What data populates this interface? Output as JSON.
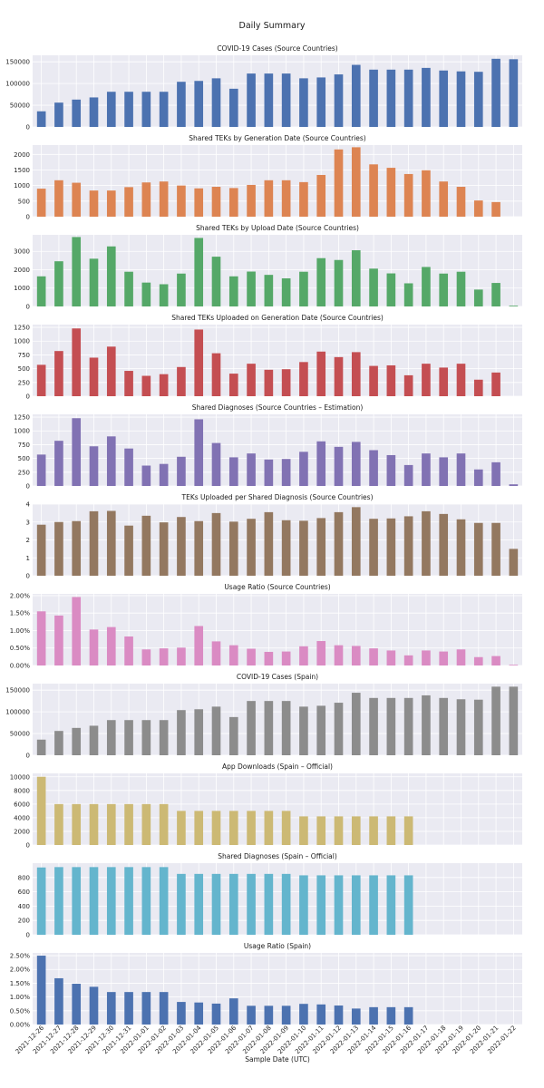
{
  "figure": {
    "title": "Daily Summary",
    "xlabel": "Sample Date (UTC)",
    "colors": {
      "background": "#eaeaf2",
      "grid": "#ffffff"
    }
  },
  "chart_data": [
    {
      "type": "bar",
      "title": "COVID-19 Cases (Source Countries)",
      "color": "#4c72b0",
      "ylim": [
        0,
        165000
      ],
      "yticks": [
        0,
        50000,
        100000,
        150000
      ],
      "ytick_labels": [
        "0",
        "50000",
        "100000",
        "150000"
      ],
      "values": [
        36000,
        56000,
        63000,
        68000,
        81000,
        81000,
        81000,
        81000,
        104000,
        106000,
        112000,
        88000,
        123000,
        123000,
        123000,
        112000,
        114000,
        121000,
        143000,
        132000,
        132000,
        132000,
        136000,
        130000,
        128000,
        127000,
        157000,
        156000
      ]
    },
    {
      "type": "bar",
      "title": "Shared TEKs by Generation Date (Source Countries)",
      "color": "#dd8452",
      "ylim": [
        0,
        2300
      ],
      "yticks": [
        0,
        500,
        1000,
        1500,
        2000
      ],
      "ytick_labels": [
        "0",
        "500",
        "1000",
        "1500",
        "2000"
      ],
      "values": [
        900,
        1170,
        1090,
        840,
        840,
        950,
        1100,
        1130,
        1000,
        910,
        960,
        920,
        1020,
        1170,
        1170,
        1110,
        1340,
        2160,
        2230,
        1680,
        1570,
        1370,
        1490,
        1130,
        960,
        520,
        470,
        0
      ]
    },
    {
      "type": "bar",
      "title": "Shared TEKs by Upload Date (Source Countries)",
      "color": "#55a868",
      "ylim": [
        0,
        3900
      ],
      "yticks": [
        0,
        1000,
        2000,
        3000
      ],
      "ytick_labels": [
        "0",
        "1000",
        "2000",
        "3000"
      ],
      "values": [
        1640,
        2460,
        3780,
        2600,
        3270,
        1890,
        1300,
        1210,
        1790,
        3730,
        2710,
        1640,
        1900,
        1720,
        1530,
        1890,
        2630,
        2530,
        3060,
        2060,
        1800,
        1260,
        2150,
        1790,
        1890,
        920,
        1280,
        40
      ]
    },
    {
      "type": "bar",
      "title": "Shared TEKs Uploaded on Generation Date (Source Countries)",
      "color": "#c44e52",
      "ylim": [
        0,
        1300
      ],
      "yticks": [
        0,
        250,
        500,
        750,
        1000,
        1250
      ],
      "ytick_labels": [
        "0",
        "250",
        "500",
        "750",
        "1000",
        "1250"
      ],
      "values": [
        570,
        820,
        1230,
        700,
        900,
        460,
        370,
        400,
        530,
        1210,
        780,
        410,
        590,
        480,
        490,
        620,
        810,
        710,
        800,
        550,
        560,
        380,
        590,
        520,
        590,
        300,
        430,
        0
      ]
    },
    {
      "type": "bar",
      "title": "Shared Diagnoses (Source Countries – Estimation)",
      "color": "#8172b3",
      "ylim": [
        0,
        1300
      ],
      "yticks": [
        0,
        250,
        500,
        750,
        1000,
        1250
      ],
      "ytick_labels": [
        "0",
        "250",
        "500",
        "750",
        "1000",
        "1250"
      ],
      "values": [
        570,
        820,
        1230,
        720,
        900,
        680,
        370,
        400,
        530,
        1210,
        780,
        520,
        590,
        480,
        490,
        620,
        810,
        710,
        800,
        650,
        560,
        380,
        590,
        520,
        590,
        300,
        430,
        30
      ]
    },
    {
      "type": "bar",
      "title": "TEKs Uploaded per Shared Diagnosis (Source Countries)",
      "color": "#937860",
      "ylim": [
        0,
        4
      ],
      "yticks": [
        0,
        1,
        2,
        3,
        4
      ],
      "ytick_labels": [
        "0",
        "1",
        "2",
        "3",
        "4"
      ],
      "values": [
        2.85,
        3.0,
        3.05,
        3.6,
        3.62,
        2.8,
        3.35,
        2.98,
        3.28,
        3.05,
        3.5,
        3.02,
        3.18,
        3.55,
        3.1,
        3.07,
        3.22,
        3.55,
        3.83,
        3.18,
        3.2,
        3.32,
        3.6,
        3.45,
        3.15,
        2.95,
        2.95,
        1.5
      ]
    },
    {
      "type": "bar",
      "title": "Usage Ratio (Source Countries)",
      "color": "#da8bc3",
      "ylim": [
        0,
        0.0205
      ],
      "yticks": [
        0,
        0.005,
        0.01,
        0.015,
        0.02
      ],
      "ytick_labels": [
        "0.00%",
        "0.50%",
        "1.00%",
        "1.50%",
        "2.00%"
      ],
      "values": [
        0.0155,
        0.0143,
        0.0196,
        0.0103,
        0.011,
        0.0083,
        0.0046,
        0.0049,
        0.0051,
        0.0113,
        0.0069,
        0.0058,
        0.0048,
        0.0039,
        0.004,
        0.0055,
        0.007,
        0.0058,
        0.0056,
        0.0049,
        0.0043,
        0.0029,
        0.0043,
        0.004,
        0.0046,
        0.0024,
        0.0027,
        0.0002
      ]
    },
    {
      "type": "bar",
      "title": "COVID-19 Cases (Spain)",
      "color": "#8c8c8c",
      "ylim": [
        0,
        165000
      ],
      "yticks": [
        0,
        50000,
        100000,
        150000
      ],
      "ytick_labels": [
        "0",
        "50000",
        "100000",
        "150000"
      ],
      "values": [
        36000,
        56000,
        63000,
        68000,
        81000,
        81000,
        81000,
        81000,
        104000,
        106000,
        112000,
        88000,
        125000,
        125000,
        125000,
        112000,
        114000,
        121000,
        144000,
        132000,
        132000,
        132000,
        138000,
        132000,
        129000,
        128000,
        158000,
        158000
      ]
    },
    {
      "type": "bar",
      "title": "App Downloads (Spain – Official)",
      "color": "#ccb974",
      "ylim": [
        0,
        10500
      ],
      "yticks": [
        0,
        2000,
        4000,
        6000,
        8000,
        10000
      ],
      "ytick_labels": [
        "0",
        "2000",
        "4000",
        "6000",
        "8000",
        "10000"
      ],
      "values": [
        10000,
        6000,
        6000,
        6000,
        6000,
        6000,
        6000,
        6000,
        5000,
        5000,
        5000,
        5000,
        5000,
        5000,
        5000,
        4200,
        4200,
        4200,
        4200,
        4200,
        4200,
        4200,
        0,
        0,
        0,
        0,
        0,
        0
      ]
    },
    {
      "type": "bar",
      "title": "Shared Diagnoses (Spain – Official)",
      "color": "#64b5cd",
      "ylim": [
        0,
        1000
      ],
      "yticks": [
        0,
        200,
        400,
        600,
        800
      ],
      "ytick_labels": [
        "0",
        "200",
        "400",
        "600",
        "800"
      ],
      "values": [
        940,
        945,
        945,
        945,
        945,
        945,
        945,
        945,
        850,
        850,
        850,
        850,
        850,
        850,
        850,
        830,
        830,
        830,
        830,
        830,
        830,
        830,
        0,
        0,
        0,
        0,
        0,
        0
      ]
    },
    {
      "type": "bar",
      "title": "Usage Ratio (Spain)",
      "color": "#4c72b0",
      "ylim": [
        0,
        0.026
      ],
      "yticks": [
        0,
        0.005,
        0.01,
        0.015,
        0.02,
        0.025
      ],
      "ytick_labels": [
        "0.00%",
        "0.50%",
        "1.00%",
        "1.50%",
        "2.00%",
        "2.50%"
      ],
      "values": [
        0.025,
        0.0168,
        0.0148,
        0.0137,
        0.0118,
        0.0118,
        0.0118,
        0.0118,
        0.0082,
        0.008,
        0.0076,
        0.0095,
        0.0068,
        0.0068,
        0.0068,
        0.0075,
        0.0073,
        0.0069,
        0.0058,
        0.0063,
        0.0063,
        0.0063,
        0,
        0,
        0,
        0,
        0,
        0
      ]
    }
  ],
  "x_categories": [
    "2021-12-26",
    "2021-12-27",
    "2021-12-28",
    "2021-12-29",
    "2021-12-30",
    "2021-12-31",
    "2022-01-01",
    "2022-01-02",
    "2022-01-03",
    "2022-01-04",
    "2022-01-05",
    "2022-01-06",
    "2022-01-07",
    "2022-01-08",
    "2022-01-09",
    "2022-01-10",
    "2022-01-11",
    "2022-01-12",
    "2022-01-13",
    "2022-01-14",
    "2022-01-15",
    "2022-01-16",
    "2022-01-17",
    "2022-01-18",
    "2022-01-19",
    "2022-01-20",
    "2022-01-21",
    "2022-01-22"
  ]
}
